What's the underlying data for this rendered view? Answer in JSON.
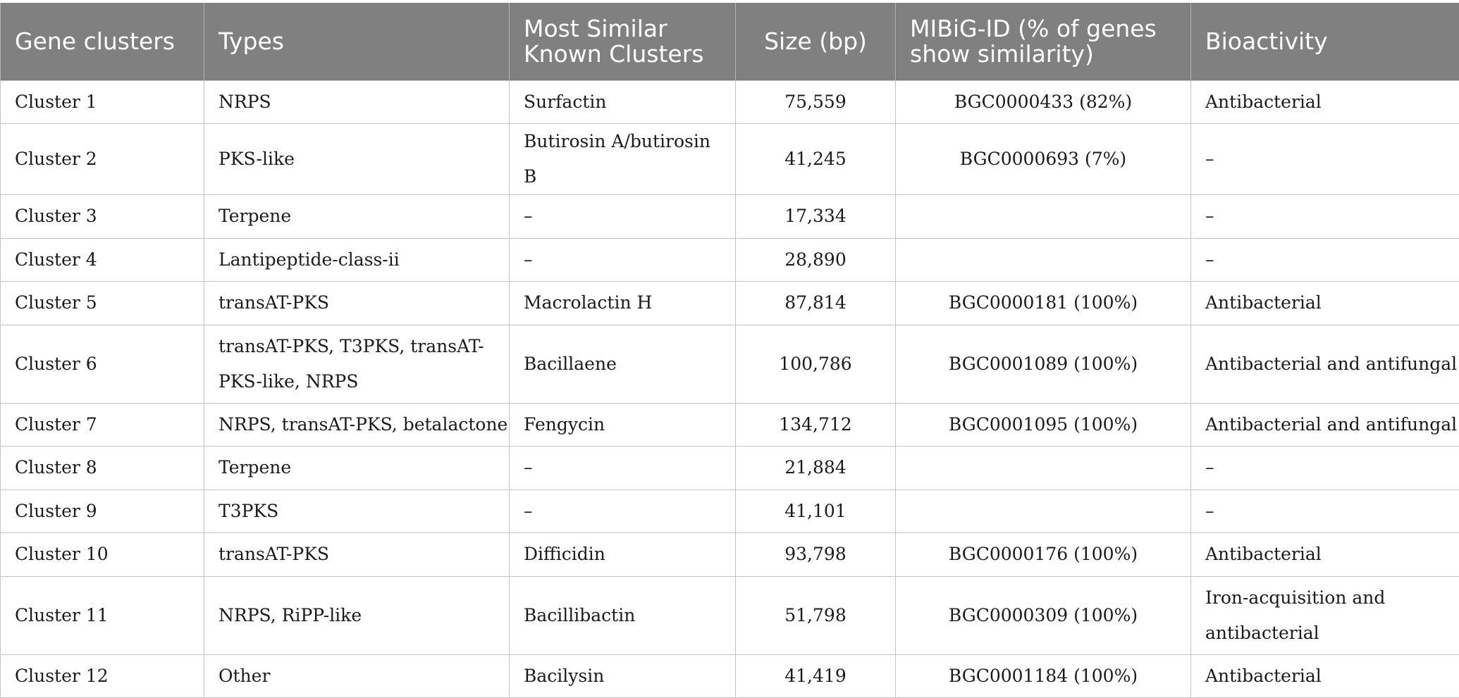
{
  "headers": {
    "gene_clusters": "Gene clusters",
    "types": "Types",
    "most_similar": "Most Similar Known Clusters",
    "size": "Size (bp)",
    "mibig": "MIBiG-ID (% of genes show similarity)",
    "bioactivity": "Bioactivity"
  },
  "rows": [
    {
      "cluster": "Cluster 1",
      "types": "NRPS",
      "similar": "Surfactin",
      "size": "75,559",
      "mibig": "BGC0000433 (82%)",
      "bioactivity": "Antibacterial"
    },
    {
      "cluster": "Cluster 2",
      "types": "PKS-like",
      "similar": "Butirosin A/butirosin B",
      "size": "41,245",
      "mibig": "BGC0000693 (7%)",
      "bioactivity": "–"
    },
    {
      "cluster": "Cluster 3",
      "types": "Terpene",
      "similar": "–",
      "size": "17,334",
      "mibig": "",
      "bioactivity": "–"
    },
    {
      "cluster": "Cluster 4",
      "types": "Lantipeptide-class-ii",
      "similar": "–",
      "size": "28,890",
      "mibig": "",
      "bioactivity": "–"
    },
    {
      "cluster": "Cluster 5",
      "types": "transAT-PKS",
      "similar": "Macrolactin H",
      "size": "87,814",
      "mibig": "BGC0000181 (100%)",
      "bioactivity": "Antibacterial"
    },
    {
      "cluster": "Cluster 6",
      "types": "transAT-PKS, T3PKS, transAT-PKS-like, NRPS",
      "similar": "Bacillaene",
      "size": "100,786",
      "mibig": "BGC0001089 (100%)",
      "bioactivity": "Antibacterial and antifungal"
    },
    {
      "cluster": "Cluster 7",
      "types": "NRPS, transAT-PKS, betalactone",
      "similar": "Fengycin",
      "size": "134,712",
      "mibig": "BGC0001095 (100%)",
      "bioactivity": "Antibacterial and antifungal"
    },
    {
      "cluster": "Cluster 8",
      "types": "Terpene",
      "similar": "–",
      "size": "21,884",
      "mibig": "",
      "bioactivity": "–"
    },
    {
      "cluster": "Cluster 9",
      "types": "T3PKS",
      "similar": "–",
      "size": "41,101",
      "mibig": "",
      "bioactivity": "–"
    },
    {
      "cluster": "Cluster 10",
      "types": "transAT-PKS",
      "similar": "Difficidin",
      "size": "93,798",
      "mibig": "BGC0000176 (100%)",
      "bioactivity": "Antibacterial"
    },
    {
      "cluster": "Cluster 11",
      "types": "NRPS, RiPP-like",
      "similar": "Bacillibactin",
      "size": "51,798",
      "mibig": "BGC0000309 (100%)",
      "bioactivity": "Iron-acquisition and antibacterial"
    },
    {
      "cluster": "Cluster 12",
      "types": "Other",
      "similar": "Bacilysin",
      "size": "41,419",
      "mibig": "BGC0001184 (100%)",
      "bioactivity": "Antibacterial"
    }
  ]
}
